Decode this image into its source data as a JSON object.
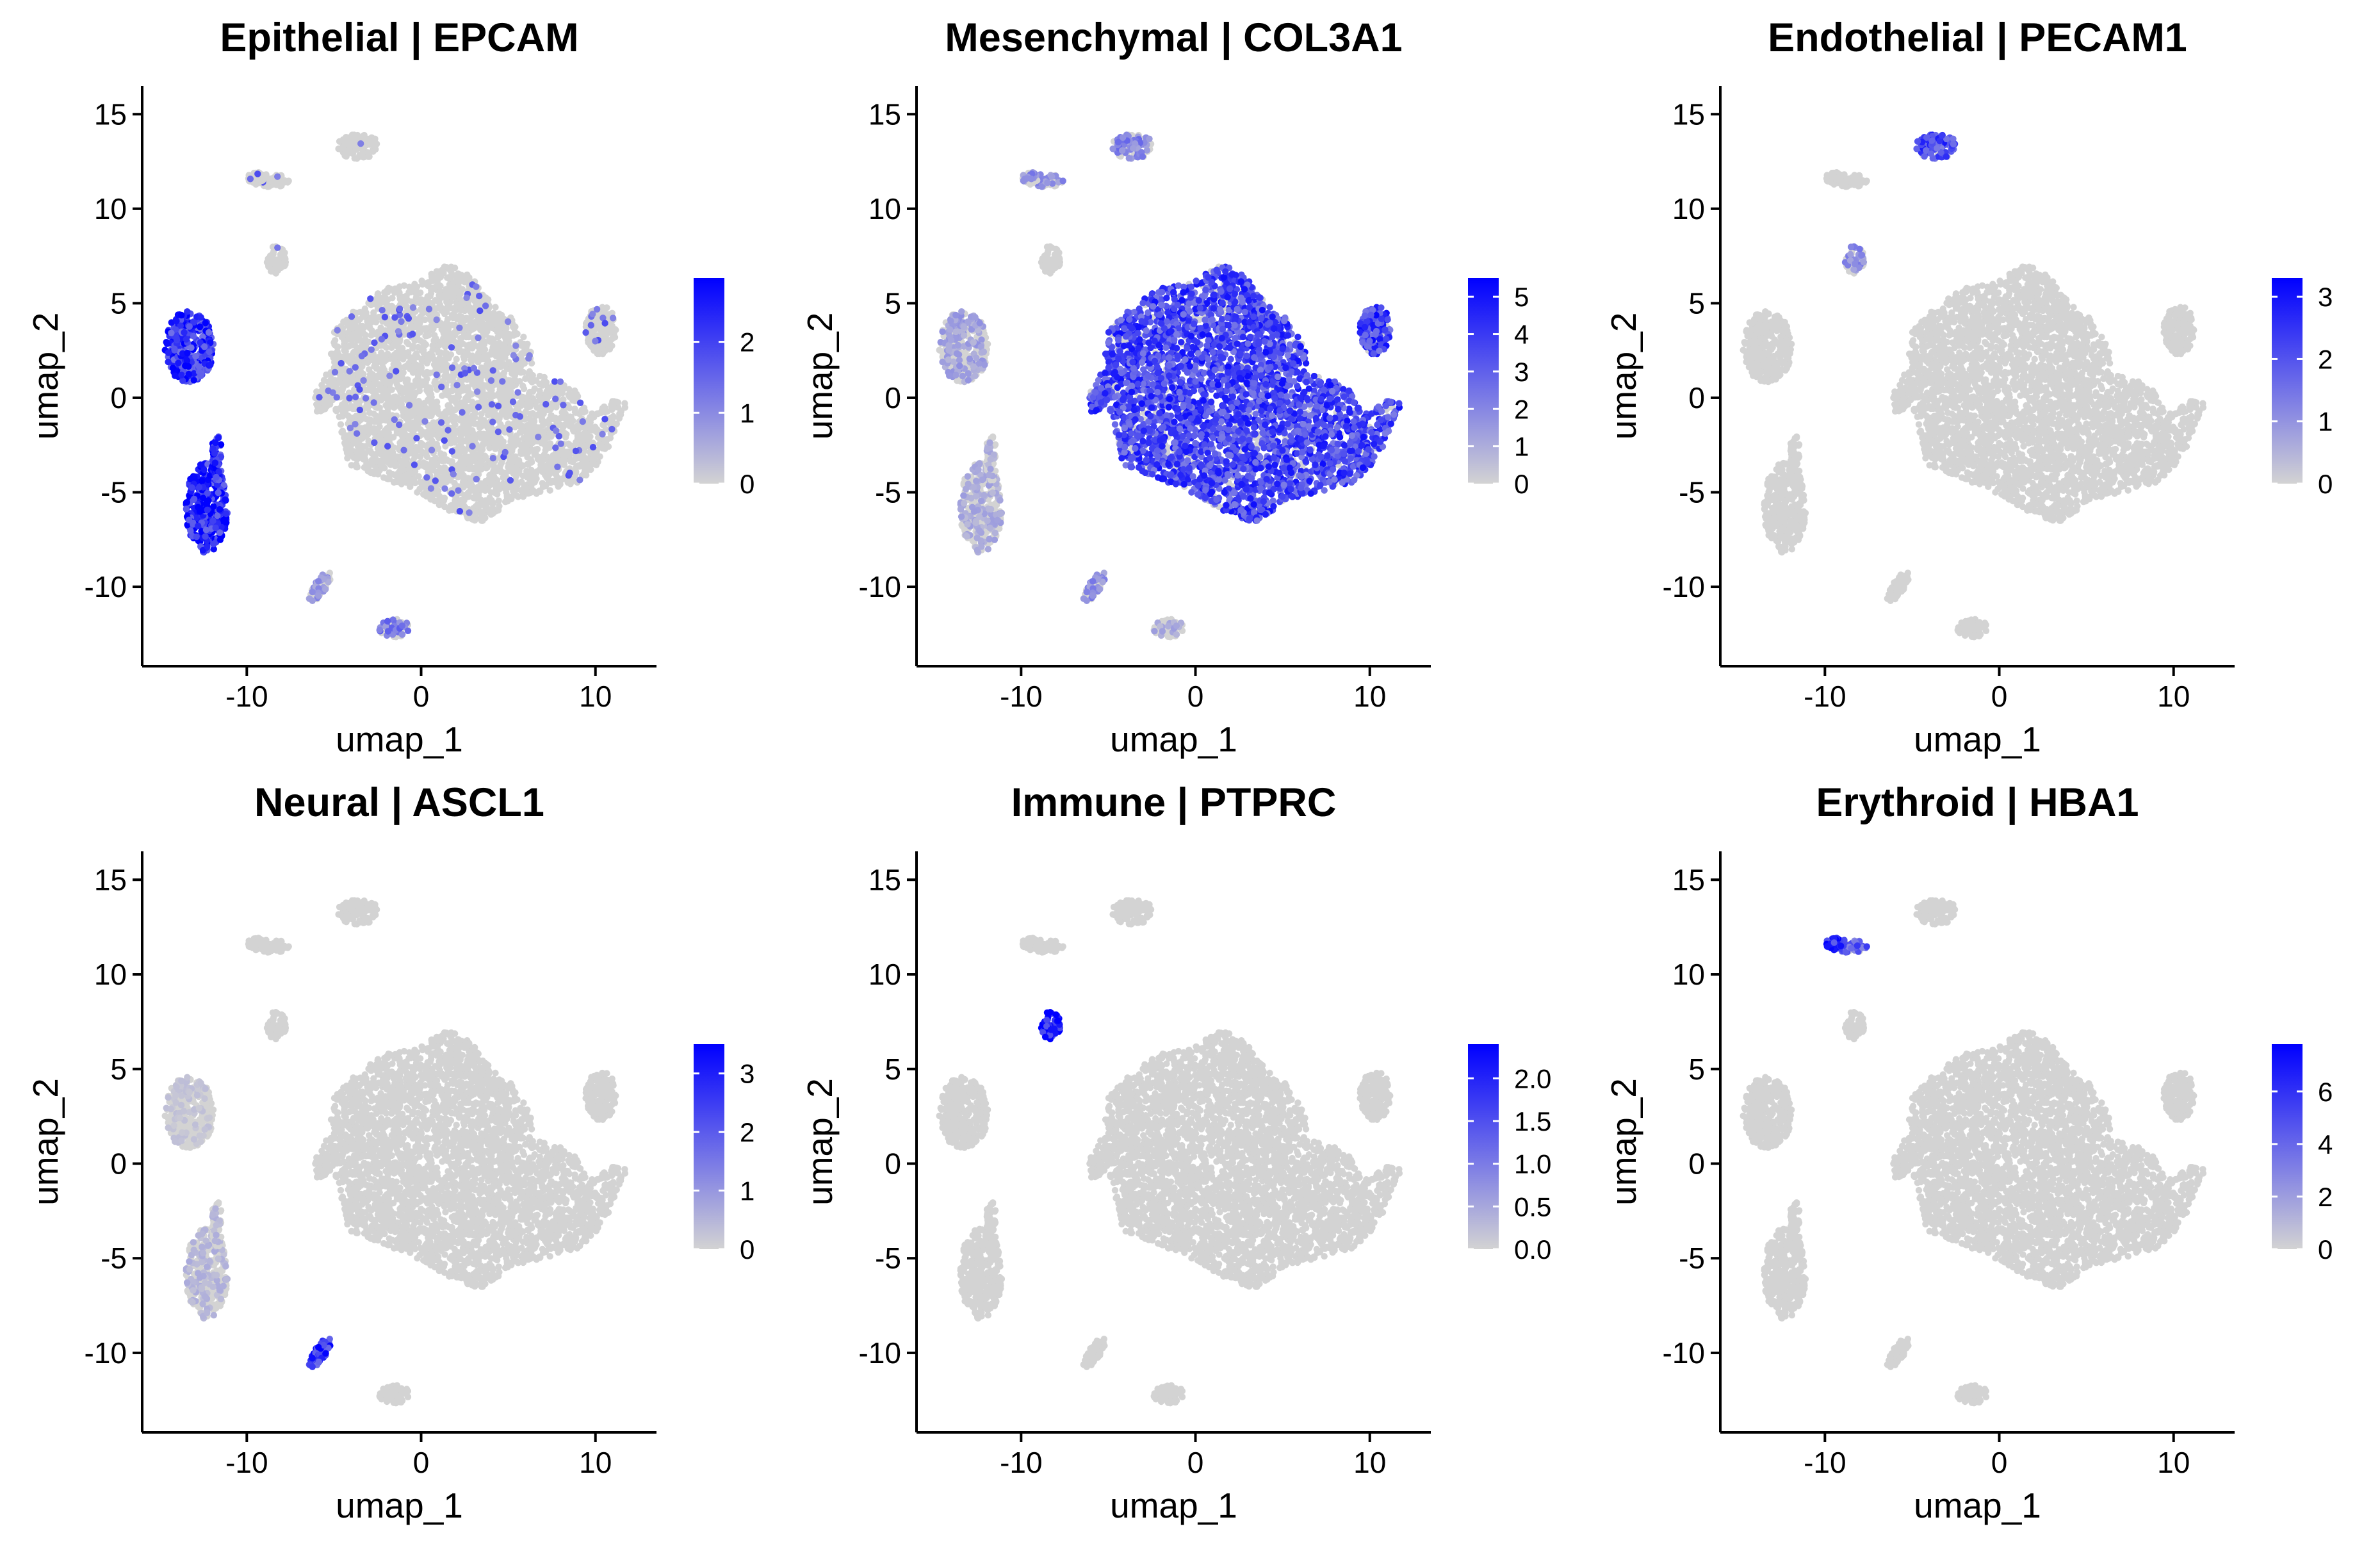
{
  "chart_data": [
    {
      "type": "scatter",
      "title": "Epithelial | EPCAM",
      "xlabel": "umap_1",
      "ylabel": "umap_2",
      "xlim": [
        -16,
        13.5
      ],
      "ylim": [
        -14.2,
        16.5
      ],
      "xticks": [
        -10,
        0,
        10
      ],
      "xtick_labels": [
        "-10",
        "0",
        "10"
      ],
      "yticks": [
        -10,
        -5,
        0,
        5,
        10,
        15
      ],
      "ytick_labels": [
        "-10",
        "-5",
        "0",
        "5",
        "10",
        "15"
      ],
      "legend": {
        "placement": "right",
        "min": 0,
        "max": 2.9,
        "ticks": [
          0,
          1,
          2
        ],
        "tick_labels": [
          "0",
          "1",
          "2"
        ]
      },
      "expression": {
        "background": 0.04,
        "scattered": 0.03,
        "clusters": {
          "epi_upper": 0.82,
          "epi_lower": 0.9,
          "bottom": 0.45,
          "c10": 0.3
        }
      }
    },
    {
      "type": "scatter",
      "title": "Mesenchymal | COL3A1",
      "xlabel": "umap_1",
      "ylabel": "umap_2",
      "xlim": [
        -16,
        13.5
      ],
      "ylim": [
        -14.2,
        16.5
      ],
      "xticks": [
        -10,
        0,
        10
      ],
      "xtick_labels": [
        "-10",
        "0",
        "10"
      ],
      "yticks": [
        -10,
        -5,
        0,
        5,
        10,
        15
      ],
      "ytick_labels": [
        "-10",
        "-5",
        "0",
        "5",
        "10",
        "15"
      ],
      "legend": {
        "placement": "right",
        "min": 0,
        "max": 5.5,
        "ticks": [
          0,
          1,
          2,
          3,
          4,
          5
        ],
        "tick_labels": [
          "0",
          "1",
          "2",
          "3",
          "4",
          "5"
        ]
      },
      "expression": {
        "background": 0.0,
        "scattered": 0.0,
        "clusters": {
          "main": 0.72,
          "right": 0.75,
          "top": 0.4,
          "c11": 0.35,
          "epi_upper": 0.25,
          "epi_lower": 0.2,
          "c10": 0.35,
          "bottom": 0.2
        }
      }
    },
    {
      "type": "scatter",
      "title": "Endothelial | PECAM1",
      "xlabel": "umap_1",
      "ylabel": "umap_2",
      "xlim": [
        -16,
        13.5
      ],
      "ylim": [
        -14.2,
        16.5
      ],
      "xticks": [
        -10,
        0,
        10
      ],
      "xtick_labels": [
        "-10",
        "0",
        "10"
      ],
      "yticks": [
        -10,
        -5,
        0,
        5,
        10,
        15
      ],
      "ytick_labels": [
        "-10",
        "-5",
        "0",
        "5",
        "10",
        "15"
      ],
      "legend": {
        "placement": "right",
        "min": 0,
        "max": 3.3,
        "ticks": [
          0,
          1,
          2,
          3
        ],
        "tick_labels": [
          "0",
          "1",
          "2",
          "3"
        ]
      },
      "expression": {
        "background": 0.0,
        "scattered": 0.0,
        "clusters": {
          "top": 0.7,
          "c8": 0.35
        }
      }
    },
    {
      "type": "scatter",
      "title": "Neural | ASCL1",
      "xlabel": "umap_1",
      "ylabel": "umap_2",
      "xlim": [
        -16,
        13.5
      ],
      "ylim": [
        -14.2,
        16.5
      ],
      "xticks": [
        -10,
        0,
        10
      ],
      "xtick_labels": [
        "-10",
        "0",
        "10"
      ],
      "yticks": [
        -10,
        -5,
        0,
        5,
        10,
        15
      ],
      "ytick_labels": [
        "-10",
        "-5",
        "0",
        "5",
        "10",
        "15"
      ],
      "legend": {
        "placement": "right",
        "min": 0,
        "max": 3.5,
        "ticks": [
          0,
          1,
          2,
          3
        ],
        "tick_labels": [
          "0",
          "1",
          "2",
          "3"
        ]
      },
      "expression": {
        "background": 0.0,
        "scattered": 0.0,
        "clusters": {
          "c10": 0.85,
          "epi_lower": 0.15,
          "epi_upper": 0.08
        }
      }
    },
    {
      "type": "scatter",
      "title": "Immune | PTPRC",
      "xlabel": "umap_1",
      "ylabel": "umap_2",
      "xlim": [
        -16,
        13.5
      ],
      "ylim": [
        -14.2,
        16.5
      ],
      "xticks": [
        -10,
        0,
        10
      ],
      "xtick_labels": [
        "-10",
        "0",
        "10"
      ],
      "yticks": [
        -10,
        -5,
        0,
        5,
        10,
        15
      ],
      "ytick_labels": [
        "-10",
        "-5",
        "0",
        "5",
        "10",
        "15"
      ],
      "legend": {
        "placement": "right",
        "min": 0,
        "max": 2.4,
        "ticks": [
          0,
          0.5,
          1,
          1.5,
          2
        ],
        "tick_labels": [
          "0.0",
          "0.5",
          "1.0",
          "1.5",
          "2.0"
        ]
      },
      "expression": {
        "background": 0.0,
        "scattered": 0.0,
        "clusters": {
          "c8": 0.95
        }
      }
    },
    {
      "type": "scatter",
      "title": "Erythroid | HBA1",
      "xlabel": "umap_1",
      "ylabel": "umap_2",
      "xlim": [
        -16,
        13.5
      ],
      "ylim": [
        -14.2,
        16.5
      ],
      "xticks": [
        -10,
        0,
        10
      ],
      "xtick_labels": [
        "-10",
        "0",
        "10"
      ],
      "yticks": [
        -10,
        -5,
        0,
        5,
        10,
        15
      ],
      "ytick_labels": [
        "-10",
        "-5",
        "0",
        "5",
        "10",
        "15"
      ],
      "legend": {
        "placement": "right",
        "min": 0,
        "max": 7.8,
        "ticks": [
          0,
          2,
          4,
          6
        ],
        "tick_labels": [
          "0",
          "2",
          "4",
          "6"
        ]
      },
      "expression": {
        "background": 0.0,
        "scattered": 0.0,
        "clusters": {
          "c11_left": 0.97,
          "c11": 0.6
        }
      }
    }
  ],
  "colors": {
    "low": "#d3d3d3",
    "high": "#0000ff",
    "axis": "#000000"
  }
}
